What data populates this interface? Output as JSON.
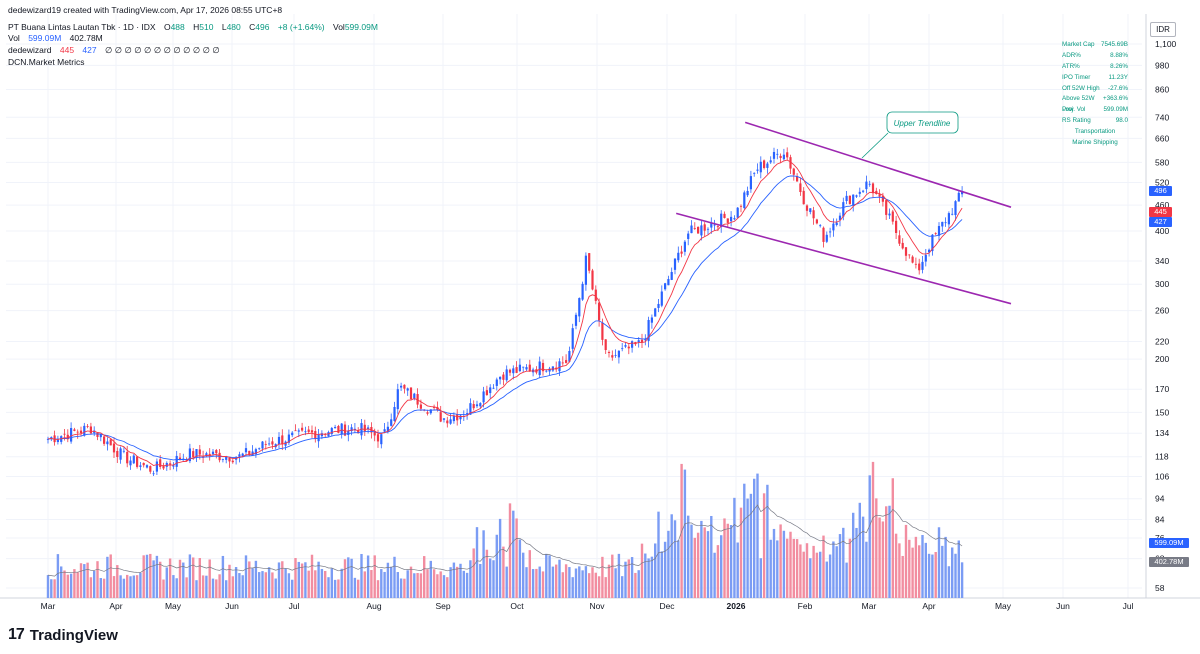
{
  "header": {
    "attribution": "dedewizard19 created with TradingView.com, Apr 17, 2026 08:55 UTC+8",
    "symbol": "PT Buana Lintas Lautan Tbk · 1D · IDX",
    "ohlc": {
      "o_label": "O",
      "o": "488",
      "h_label": "H",
      "h": "510",
      "l_label": "L",
      "l": "480",
      "c_label": "C",
      "c": "496",
      "change": "+8 (+1.64%)",
      "vol_label": "Vol",
      "vol": "599.09M"
    },
    "vol_legend": {
      "label": "Vol",
      "v1": "599.09M",
      "v2": "402.78M"
    },
    "ma_legend": {
      "label": "dedewizard",
      "v1": "445",
      "v2": "427",
      "rest": "∅ ∅ ∅ ∅ ∅ ∅ ∅ ∅ ∅ ∅ ∅ ∅"
    },
    "metrics_legend": "DCN.Market Metrics"
  },
  "currency": "IDR",
  "metrics": [
    {
      "label": "Market Cap",
      "value": "7545.69B"
    },
    {
      "label": "ADR%",
      "value": "8.88%"
    },
    {
      "label": "ATR%",
      "value": "8.26%"
    },
    {
      "label": "IPO Timer",
      "value": "11.23Y"
    },
    {
      "label": "Off 52W High",
      "value": "-27.6%"
    },
    {
      "label": "Above 52W Low",
      "value": "+363.6%"
    },
    {
      "label": "Proj. Vol",
      "value": "599.09M"
    },
    {
      "label": "RS Rating",
      "value": "98.0"
    }
  ],
  "sector": "Transportation",
  "industry": "Marine Shipping",
  "price_tags": {
    "last": "496",
    "ma1": "445",
    "ma2": "427"
  },
  "volume_tags": {
    "vol": "599.09M",
    "avg": "402.78M"
  },
  "annotation": "Upper Trendline",
  "brand": "TradingView",
  "colors": {
    "up": "#2962ff",
    "down": "#f23645",
    "ma_fast": "#f23645",
    "ma_slow": "#2962ff",
    "trendline": "#9c27b0",
    "vol_up": "#7b9cf4",
    "vol_down": "#f28da0",
    "metric_text": "#089981"
  },
  "chart_data": {
    "type": "candlestick",
    "scale": "log",
    "y_ticks": [
      1100,
      980,
      860,
      740,
      660,
      580,
      520,
      460,
      400,
      340,
      300,
      260,
      220,
      200,
      170,
      150,
      134,
      118,
      106,
      94,
      84,
      76,
      68,
      58
    ],
    "ylim": [
      56,
      1160
    ],
    "x_ticks": [
      "Mar",
      "Apr",
      "May",
      "Jun",
      "Jul",
      "Aug",
      "Sep",
      "Oct",
      "Nov",
      "Dec",
      "2026",
      "Feb",
      "Mar",
      "Apr",
      "May",
      "Jun",
      "Jul"
    ],
    "keypoints": [
      {
        "date": "2025-03-01",
        "close": 130
      },
      {
        "date": "2025-03-20",
        "close": 138
      },
      {
        "date": "2025-04-05",
        "close": 118
      },
      {
        "date": "2025-04-20",
        "close": 110
      },
      {
        "date": "2025-05-10",
        "close": 120
      },
      {
        "date": "2025-06-05",
        "close": 118
      },
      {
        "date": "2025-06-20",
        "close": 128
      },
      {
        "date": "2025-07-10",
        "close": 135
      },
      {
        "date": "2025-07-25",
        "close": 138
      },
      {
        "date": "2025-08-05",
        "close": 130
      },
      {
        "date": "2025-08-12",
        "close": 172
      },
      {
        "date": "2025-09-01",
        "close": 145
      },
      {
        "date": "2025-09-10",
        "close": 150
      },
      {
        "date": "2025-09-25",
        "close": 185
      },
      {
        "date": "2025-10-20",
        "close": 198
      },
      {
        "date": "2025-10-27",
        "close": 345
      },
      {
        "date": "2025-11-05",
        "close": 200
      },
      {
        "date": "2025-11-20",
        "close": 218
      },
      {
        "date": "2025-12-10",
        "close": 395
      },
      {
        "date": "2025-12-31",
        "close": 440
      },
      {
        "date": "2026-01-10",
        "close": 560
      },
      {
        "date": "2026-01-22",
        "close": 620
      },
      {
        "date": "2026-02-01",
        "close": 470
      },
      {
        "date": "2026-02-10",
        "close": 385
      },
      {
        "date": "2026-02-20",
        "close": 470
      },
      {
        "date": "2026-03-01",
        "close": 520
      },
      {
        "date": "2026-03-12",
        "close": 420
      },
      {
        "date": "2026-03-25",
        "close": 320
      },
      {
        "date": "2026-04-01",
        "close": 370
      },
      {
        "date": "2026-04-15",
        "close": 496
      }
    ],
    "last": {
      "open": 488,
      "high": 510,
      "low": 480,
      "close": 496,
      "change": "+8 (+1.64%)",
      "volume": "599.09M"
    },
    "ma_fast_last": 445,
    "ma_slow_last": 427,
    "volume_avg_last": "402.78M",
    "volume_peaks": [
      {
        "date": "2025-09-25",
        "volume": "high"
      },
      {
        "date": "2025-12-10",
        "volume": "highest"
      },
      {
        "date": "2026-01-10",
        "volume": "high"
      },
      {
        "date": "2026-03-05",
        "volume": "high"
      }
    ],
    "trendlines": [
      {
        "name": "Upper Trendline",
        "from": {
          "date": "2026-01-05",
          "price": 720
        },
        "to": {
          "date": "2026-05-01",
          "price": 455
        }
      },
      {
        "name": "",
        "from": {
          "date": "2025-12-05",
          "price": 440
        },
        "to": {
          "date": "2026-05-01",
          "price": 270
        }
      }
    ]
  }
}
